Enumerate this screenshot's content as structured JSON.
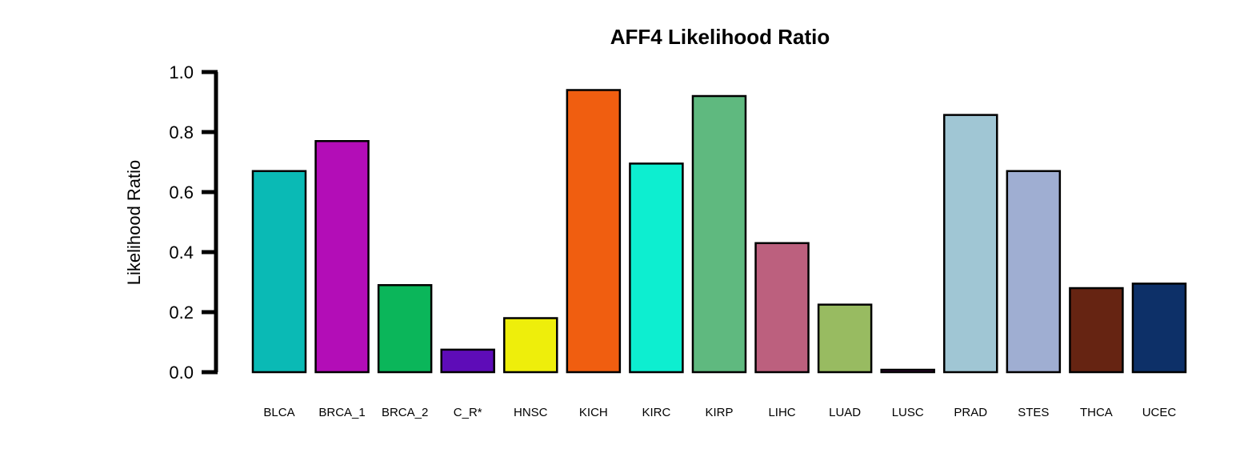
{
  "chart_data": {
    "type": "bar",
    "title": "AFF4 Likelihood Ratio",
    "xlabel": "",
    "ylabel": "Likelihood Ratio",
    "ylim": [
      0,
      1.0
    ],
    "yticks": [
      "0.0",
      "0.2",
      "0.4",
      "0.6",
      "0.8",
      "1.0"
    ],
    "grid": false,
    "legend": "none",
    "categories": [
      "BLCA",
      "BRCA_1",
      "BRCA_2",
      "C_R*",
      "HNSC",
      "KICH",
      "KIRC",
      "KIRP",
      "LIHC",
      "LUAD",
      "LUSC",
      "PRAD",
      "STES",
      "THCA",
      "UCEC"
    ],
    "values": [
      0.67,
      0.77,
      0.29,
      0.075,
      0.18,
      0.94,
      0.695,
      0.92,
      0.43,
      0.225,
      0.008,
      0.857,
      0.67,
      0.28,
      0.295
    ],
    "colors": [
      "#0ABAB5",
      "#B30DB7",
      "#0BB65A",
      "#5E0CB8",
      "#EEEE0B",
      "#F05E10",
      "#0DEED0",
      "#5FB97F",
      "#BC607E",
      "#98BB61",
      "#5F0C5F",
      "#A0C6D4",
      "#9FAED2",
      "#662412",
      "#0D3068"
    ]
  }
}
